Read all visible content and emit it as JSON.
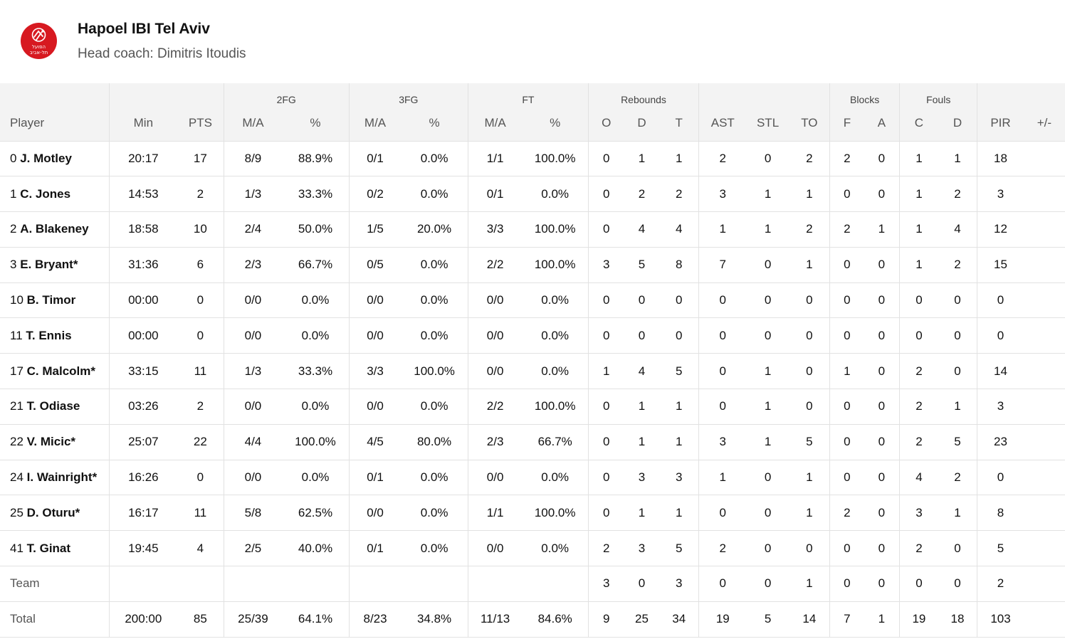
{
  "team": {
    "name": "Hapoel IBI Tel Aviv",
    "coach": "Head coach: Dimitris Itoudis",
    "logo_text": [
      "הפועל",
      "תל-אביב"
    ],
    "brand_color": "#d71920"
  },
  "groups": {
    "fg2": "2FG",
    "fg3": "3FG",
    "ft": "FT",
    "reb": "Rebounds",
    "blk": "Blocks",
    "fouls": "Fouls"
  },
  "columns": [
    "Player",
    "Min",
    "PTS",
    "M/A",
    "%",
    "M/A",
    "%",
    "M/A",
    "%",
    "O",
    "D",
    "T",
    "AST",
    "STL",
    "TO",
    "F",
    "A",
    "C",
    "D",
    "PIR",
    "+/-"
  ],
  "players": [
    {
      "num": "0",
      "name": "J. Motley",
      "s": [
        "20:17",
        "17",
        "8/9",
        "88.9%",
        "0/1",
        "0.0%",
        "1/1",
        "100.0%",
        "0",
        "1",
        "1",
        "2",
        "0",
        "2",
        "2",
        "0",
        "1",
        "1",
        "18",
        ""
      ]
    },
    {
      "num": "1",
      "name": "C. Jones",
      "s": [
        "14:53",
        "2",
        "1/3",
        "33.3%",
        "0/2",
        "0.0%",
        "0/1",
        "0.0%",
        "0",
        "2",
        "2",
        "3",
        "1",
        "1",
        "0",
        "0",
        "1",
        "2",
        "3",
        ""
      ]
    },
    {
      "num": "2",
      "name": "A. Blakeney",
      "s": [
        "18:58",
        "10",
        "2/4",
        "50.0%",
        "1/5",
        "20.0%",
        "3/3",
        "100.0%",
        "0",
        "4",
        "4",
        "1",
        "1",
        "2",
        "2",
        "1",
        "1",
        "4",
        "12",
        ""
      ]
    },
    {
      "num": "3",
      "name": "E. Bryant*",
      "s": [
        "31:36",
        "6",
        "2/3",
        "66.7%",
        "0/5",
        "0.0%",
        "2/2",
        "100.0%",
        "3",
        "5",
        "8",
        "7",
        "0",
        "1",
        "0",
        "0",
        "1",
        "2",
        "15",
        ""
      ]
    },
    {
      "num": "10",
      "name": "B. Timor",
      "s": [
        "00:00",
        "0",
        "0/0",
        "0.0%",
        "0/0",
        "0.0%",
        "0/0",
        "0.0%",
        "0",
        "0",
        "0",
        "0",
        "0",
        "0",
        "0",
        "0",
        "0",
        "0",
        "0",
        ""
      ]
    },
    {
      "num": "11",
      "name": "T. Ennis",
      "s": [
        "00:00",
        "0",
        "0/0",
        "0.0%",
        "0/0",
        "0.0%",
        "0/0",
        "0.0%",
        "0",
        "0",
        "0",
        "0",
        "0",
        "0",
        "0",
        "0",
        "0",
        "0",
        "0",
        ""
      ]
    },
    {
      "num": "17",
      "name": "C. Malcolm*",
      "s": [
        "33:15",
        "11",
        "1/3",
        "33.3%",
        "3/3",
        "100.0%",
        "0/0",
        "0.0%",
        "1",
        "4",
        "5",
        "0",
        "1",
        "0",
        "1",
        "0",
        "2",
        "0",
        "14",
        ""
      ]
    },
    {
      "num": "21",
      "name": "T. Odiase",
      "s": [
        "03:26",
        "2",
        "0/0",
        "0.0%",
        "0/0",
        "0.0%",
        "2/2",
        "100.0%",
        "0",
        "1",
        "1",
        "0",
        "1",
        "0",
        "0",
        "0",
        "2",
        "1",
        "3",
        ""
      ]
    },
    {
      "num": "22",
      "name": "V. Micic*",
      "s": [
        "25:07",
        "22",
        "4/4",
        "100.0%",
        "4/5",
        "80.0%",
        "2/3",
        "66.7%",
        "0",
        "1",
        "1",
        "3",
        "1",
        "5",
        "0",
        "0",
        "2",
        "5",
        "23",
        ""
      ]
    },
    {
      "num": "24",
      "name": "I. Wainright*",
      "s": [
        "16:26",
        "0",
        "0/0",
        "0.0%",
        "0/1",
        "0.0%",
        "0/0",
        "0.0%",
        "0",
        "3",
        "3",
        "1",
        "0",
        "1",
        "0",
        "0",
        "4",
        "2",
        "0",
        ""
      ]
    },
    {
      "num": "25",
      "name": "D. Oturu*",
      "s": [
        "16:17",
        "11",
        "5/8",
        "62.5%",
        "0/0",
        "0.0%",
        "1/1",
        "100.0%",
        "0",
        "1",
        "1",
        "0",
        "0",
        "1",
        "2",
        "0",
        "3",
        "1",
        "8",
        ""
      ]
    },
    {
      "num": "41",
      "name": "T. Ginat",
      "s": [
        "19:45",
        "4",
        "2/5",
        "40.0%",
        "0/1",
        "0.0%",
        "0/0",
        "0.0%",
        "2",
        "3",
        "5",
        "2",
        "0",
        "0",
        "0",
        "0",
        "2",
        "0",
        "5",
        ""
      ]
    }
  ],
  "team_row": {
    "label": "Team",
    "s": [
      "",
      "",
      "",
      "",
      "",
      "",
      "",
      "",
      "3",
      "0",
      "3",
      "0",
      "0",
      "1",
      "0",
      "0",
      "0",
      "0",
      "2",
      ""
    ]
  },
  "total_row": {
    "label": "Total",
    "s": [
      "200:00",
      "85",
      "25/39",
      "64.1%",
      "8/23",
      "34.8%",
      "11/13",
      "84.6%",
      "9",
      "25",
      "34",
      "19",
      "5",
      "14",
      "7",
      "1",
      "19",
      "18",
      "103",
      ""
    ]
  }
}
